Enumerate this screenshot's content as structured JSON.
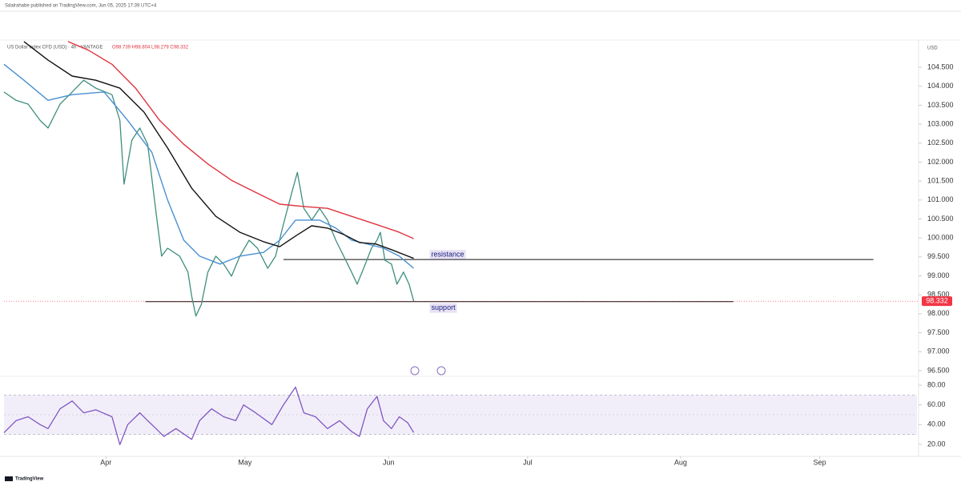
{
  "header": "Sdalrahabe published on TradingView.com, Jun 05, 2025 17:39 UTC+4",
  "footer": "TradingView",
  "chart_data": [
    {
      "type": "line",
      "title": "US Dollar Index CFD (USD) · 4h · VANTAGE",
      "subtitle": "O98.739 H98.804 L98.279 C98.332",
      "y_label": "USD",
      "xlim": [
        0,
        197
      ],
      "ylim": [
        96.35,
        105.22
      ],
      "yticks": [
        {
          "value": 96.5,
          "label": "96.500"
        },
        {
          "value": 97,
          "label": "97.000"
        },
        {
          "value": 97.5,
          "label": "97.500"
        },
        {
          "value": 98,
          "label": "98.000"
        },
        {
          "value": 98.5,
          "label": "98.500"
        },
        {
          "value": 99,
          "label": "99.000"
        },
        {
          "value": 99.5,
          "label": "99.500"
        },
        {
          "value": 100,
          "label": "100.000"
        },
        {
          "value": 100.5,
          "label": "100.500"
        },
        {
          "value": 101,
          "label": "101.000"
        },
        {
          "value": 101.5,
          "label": "101.500"
        },
        {
          "value": 102,
          "label": "102.000"
        },
        {
          "value": 102.5,
          "label": "102.500"
        },
        {
          "value": 103,
          "label": "103.000"
        },
        {
          "value": 103.5,
          "label": "103.500"
        },
        {
          "value": 104,
          "label": "104.000"
        },
        {
          "value": 104.5,
          "label": "104.500"
        }
      ],
      "last_price": 98.332,
      "last_price_color": "#f23645",
      "levels": [
        {
          "label": "resistance",
          "value": 99.43,
          "x": [
            60.3,
            187.6
          ]
        },
        {
          "label": "support",
          "value": 98.32,
          "x": [
            30.5,
            157.4
          ]
        }
      ],
      "series": [
        {
          "color": "#3e8e7e",
          "x": [
            0,
            2.6,
            5.2,
            7.8,
            9.5,
            12.1,
            14.7,
            17.2,
            19.8,
            23.3,
            25,
            25.9,
            27.6,
            29.3,
            31,
            32.8,
            34,
            35.3,
            37.9,
            39.7,
            40.5,
            41.4,
            42.6,
            44,
            45.7,
            47.4,
            49.1,
            50.9,
            52.9,
            54.7,
            56.9,
            58.6,
            60.3,
            62.1,
            63.3,
            64.7,
            66.4,
            68.1,
            69.8,
            71.6,
            73.3,
            75,
            76.2,
            77.6,
            79.3,
            80.5,
            81.2,
            82.2,
            83.6,
            84.8,
            86.2,
            87.4,
            88.4
          ],
          "values": [
            103.85,
            103.63,
            103.53,
            103.1,
            102.9,
            103.53,
            103.85,
            104.16,
            103.95,
            103.78,
            103.1,
            101.42,
            102.58,
            102.9,
            102.47,
            100.68,
            99.52,
            99.73,
            99.52,
            99.1,
            98.46,
            97.94,
            98.25,
            99.1,
            99.52,
            99.31,
            98.99,
            99.52,
            99.94,
            99.73,
            99.2,
            99.52,
            100.36,
            101.2,
            101.73,
            100.78,
            100.47,
            100.78,
            100.47,
            99.94,
            99.52,
            99.1,
            98.78,
            99.2,
            99.73,
            99.94,
            100.15,
            99.41,
            99.31,
            98.78,
            99.1,
            98.78,
            98.33
          ]
        },
        {
          "color": "#4a8fd1",
          "x": [
            0,
            4.3,
            9.5,
            14.7,
            21.6,
            26.7,
            31.9,
            35.3,
            38.8,
            42.2,
            46.6,
            50.9,
            56,
            59.5,
            62.9,
            68.1,
            71.6,
            75,
            78.4,
            81.9,
            85.3,
            88.4
          ],
          "values": [
            104.58,
            104.16,
            103.63,
            103.78,
            103.85,
            103.1,
            102.26,
            101.0,
            99.94,
            99.52,
            99.31,
            99.52,
            99.62,
            99.94,
            100.47,
            100.47,
            100.26,
            99.94,
            99.84,
            99.73,
            99.52,
            99.2
          ]
        },
        {
          "color": "#111111",
          "x": [
            4.3,
            9.5,
            14.7,
            19.8,
            25,
            30.2,
            35.3,
            40.5,
            45.7,
            50.9,
            56,
            59.5,
            62.9,
            66.4,
            69.8,
            73.3,
            76.7,
            80.2,
            83.6,
            88.4
          ],
          "values": [
            105.18,
            104.69,
            104.27,
            104.16,
            103.95,
            103.32,
            102.37,
            101.31,
            100.57,
            100.15,
            99.9,
            99.77,
            100.05,
            100.32,
            100.26,
            100.09,
            99.88,
            99.84,
            99.69,
            99.46
          ]
        },
        {
          "color": "#e0343f",
          "x": [
            13.8,
            18.1,
            23.3,
            28.4,
            33.6,
            38.8,
            44,
            49.1,
            54.3,
            59.5,
            64.7,
            69.8,
            75,
            80.2,
            85.3,
            88.4
          ],
          "values": [
            105.18,
            104.96,
            104.58,
            103.95,
            103.1,
            102.47,
            101.95,
            101.52,
            101.2,
            100.89,
            100.83,
            100.78,
            100.57,
            100.36,
            100.15,
            99.98
          ]
        }
      ]
    },
    {
      "type": "line",
      "xlim": [
        0,
        197
      ],
      "ylim": [
        9.4,
        89
      ],
      "xticks": [
        {
          "value": 22,
          "label": "Apr"
        },
        {
          "value": 52,
          "label": "May"
        },
        {
          "value": 83,
          "label": "Jun"
        },
        {
          "value": 113,
          "label": "Jul"
        },
        {
          "value": 146,
          "label": "Aug"
        },
        {
          "value": 176,
          "label": "Sep"
        }
      ],
      "yticks": [
        {
          "value": 20,
          "label": "20.00"
        },
        {
          "value": 40,
          "label": "40.00"
        },
        {
          "value": 60,
          "label": "60.00"
        },
        {
          "value": 80,
          "label": "80.00"
        }
      ],
      "band": [
        30,
        70
      ],
      "midline": 50,
      "series": [
        {
          "color": "#7e57c2",
          "x": [
            0,
            2.6,
            5.2,
            7.8,
            9.5,
            12.1,
            14.7,
            17.2,
            19.8,
            23.3,
            25,
            26.7,
            29.3,
            31,
            32.8,
            34.5,
            37.1,
            40.5,
            42.2,
            44.8,
            47.4,
            50,
            51.7,
            54.3,
            57.8,
            60.3,
            62.9,
            64.7,
            67.2,
            69.8,
            72.4,
            75,
            76.7,
            78.4,
            80.5,
            81.9,
            83.6,
            85.3,
            87.1,
            88.4
          ],
          "values": [
            31.8,
            44,
            48,
            40,
            36,
            56,
            64,
            52,
            55,
            48,
            19.6,
            40,
            52,
            44,
            36,
            28,
            36,
            25,
            44,
            56,
            48,
            44,
            60,
            52,
            40,
            60,
            78,
            52,
            48,
            36,
            44,
            33,
            28,
            56,
            68.6,
            44,
            36,
            48,
            42,
            32
          ]
        }
      ]
    }
  ]
}
